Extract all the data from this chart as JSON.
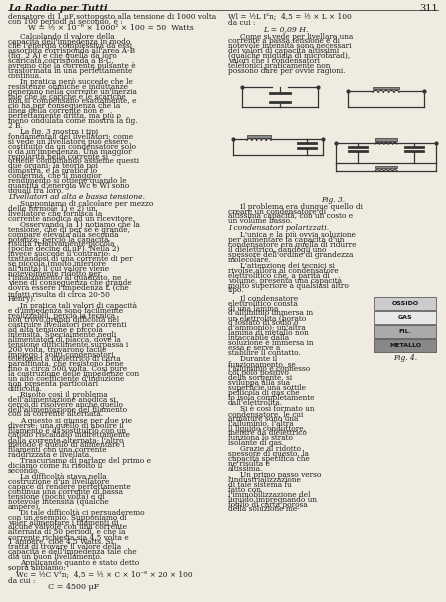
{
  "page_number": "311",
  "header_title": "La Radio per Tutti",
  "background_color": "#f0ebe0",
  "text_color": "#1a1a1a",
  "col1_lines": [
    "densatore di 1 μF sottoposto alla tensione di 1000 volta",
    "con 100 periodi al secondo, è :"
  ],
  "formula1": "W = ½ × 10⁻⁶ × 1000² × 100 = 50  Watts",
  "col1_para1": "Calcolando il valore della capacità dell'impedenza in modo che l'energia complessiva da essi assorbita corrisponda all'area A-B (fig. 2 A) e che quella da loro scaricata corrisponda a B-C, avremo che la corrente pulsante è trasformata in una perfettamente continua.",
  "col1_para2": "In pratica però succede che le resistenze ohmiche e induttanze generano nella corrente un'inerzia tale che le cariche e le scariche non si compensano esattamente, e ciò ha per conseguenza che la linea della corrente non è perfettamente dritta, ma più o meno ondulata come mostra la fig. 2 B.",
  "col1_para3": "La fig. 3 mostra i tipi fondamentali dei livellatori; come si vede un livellatore può essere costituito da un condensatore solo o da un'impedenza. Una maggior regolarità nella corrente si ottiene combinando assieme questi due organi; la teoria poi dimostra, e la pratica lo conferma, che il maggior rendimento si ottiene quando le quantità d'energia Wc e Wl sono uguali fra loro.",
  "section_head1": "Livellatori ad alta e bassa tensione.",
  "col1_para4": "Supponiamo di calcolare per mezzo delle formole 1) e 2) un livellatore che fornisca la corrente anodica ad un ricevitore.",
  "col1_para5": "Osservando la 1) notiamo che la tensione, che di per sè è grande, compare elevata alla seconda potenza; perciò la capacità risulta relativamente piccola (poche decine di μF). Nella 2) invece succede il contrario: trattandosi di una corrente di per sè piccola (molto inferiore all'unità) il cui valore viene notevolmente ridotto per l'innalzamento al quadrato, ne viene di conseguenza che grande dovrà essere l'impedenza L (che",
  "col1_para5b": "infatti risulta di circa 20-50 Henry).",
  "col1_para6": "In pratica tali valori di capacità e d'impedenza sono facilmente realizzabili, perciò la tecnica non trovò grandi difficoltà nel costruire livellatori per correnti ad alta tensione e piccola intensità. Specialmente negli alimentatori di placca, dove la tensione difficilmente surpassa i 200 volta, trovarono facile impiego i soliti condensatori telefonici a dielettrico di carta paraffinata, che resistono bene fino a circa 500 volta. Così pure la costruzione delle impedenze con un alto coefficiente d'induzione non presenta particolari difficoltà.",
  "col1_para7": "Risolto così il problema dell'alimentazione anodica si cercò di risolvere anche quello dell'alimentazione del filamento con la corrente alternata.",
  "col1_para8": "A questo si giunse per due vie diverse: una quello di abolire il filamento e di sostituirlo con un catodo riscaldato indirettamente dalla corrente alternata; l'altro metodo è quello di alimentare i filamenti con una corrente raddrizzata e livellata.",
  "col1_para9": "Trascuriamo di parlare del primo e diciamo come fu risolto il secondo.",
  "col1_para10": "La difficoltà stava nella costruzione d'un livellatore capace di rendere perfettamente continua una corrente di bassa tensione (pochi volta) e di notevole intensità (qualche ampère).",
  "col1_para11": "Di tale difficoltà ci persuaderemo con un esempio. Supponiamo di voler alimentare i filamenti di alcune valvole con una corrente alternata di 50 periodi, e che la corrente richiesta sia 4,5 volta e 1 ampère, ciòè 4,5 Watts. Si tratta di trovare il valore della capacità e dell'impedenza tale che dia un buon livellamento.",
  "col1_para12": "Applicando quanto è stato detto sopra abbiamo:",
  "formula2": "Wc = ½C V²n;  4,5 = ½ × C × 10⁻⁶ × 20 × 100",
  "col1_da_cui": "da cui :",
  "formula3": "C = 4500 μF",
  "col2_formula_top": "Wl = ½L I²n;  4,5 = ½ × L × 100",
  "col2_da_cui": "da cui :",
  "formula4": "L = 0,09 H.",
  "col2_para1": "Come si vede per livellare una corrente a bassa tensione e di notevole intensità sono necessari dei valori di capacità altissimi (qualche migliaia di microfarad), valori che i condensatori telefonici praticamente non possono dare per ovvie ragioni.",
  "fig3_caption": "Fig. 3.",
  "col2_para2": "Il problema era dunque quello di creare un condensatore di altissima capacità, con un costo e un volume basso.",
  "section_head2": "I condensatori polarizzati.",
  "col2_para3": "L'unica e la più ovvia soluzione per aumentare la capacità d'un condensatore era quella di ridurre il dielettrico, dandogli uno spessore dell'ordine di grandezza molecolare.",
  "col2_para4": "L'attenzione dei tecnici si rivolse allora al condensatore elettrolitico che, a parità di volume, presenta una capacità molto superiore a qualsiasi altro tipo.",
  "col2_para5": "Il condensatore elettrolitico consta di una lamina d'alluminio immersa in un elettrolita (borato o fosfato di sodio o d'ammonio); un'altra lamina di metallo non intaccabile dalla soluzione è immersa in essa e serve a stabilire il contatto.",
  "col2_para6": "Durante il funzionamento, se l'alluminio è connesso col polo positivo della sorgente, si sviluppa alla sua superficie una sottile pellicola di gas che lo isola completamente dall'elettrolita.",
  "col2_para7": "Si è così formato un condensatore, le cui armature sono una l'alluminio, l'altra il liquido conduttore, mentre da dielettrico funziona lo strato isolante di gas.",
  "col2_para8": "Grazie al ridotto spessore di questo, la capacità specifica che ne risulta è altissima.",
  "col2_para9": "Un primo passo verso l'industrializzazione di tale sistema fu fatto con l'immobilizzazione del liquido impregnando un foglio di carta porosa della soluzione me-",
  "fig4_caption": "Fig. 4.",
  "fig4_labels": [
    "OSSIDO",
    "GAS",
    "FIL.",
    "METALLO"
  ],
  "fig4_layer_colors": [
    "#cccccc",
    "#e8e8e8",
    "#aaaaaa",
    "#888888"
  ]
}
